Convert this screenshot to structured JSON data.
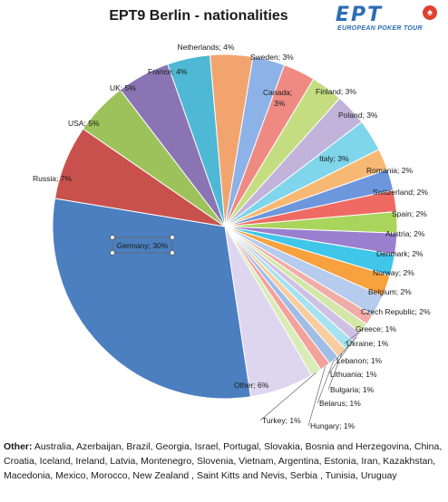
{
  "logo": {
    "brand": "EPT",
    "tagline": "EUROPEAN POKER TOUR",
    "suit": "♠"
  },
  "chart_data": {
    "type": "pie",
    "title": "EPT9 Berlin - nationalities",
    "slices": [
      {
        "label": "Netherlands",
        "value": 4,
        "text": "Netherlands; 4%",
        "color": "#f2a46e"
      },
      {
        "label": "Sweden",
        "value": 3,
        "text": "Sweden; 3%",
        "color": "#8cb2e8"
      },
      {
        "label": "Canada",
        "value": 3,
        "text": "Canada; 3%",
        "color": "#ef8a83"
      },
      {
        "label": "Finland",
        "value": 3,
        "text": "Finland; 3%",
        "color": "#c4dd80"
      },
      {
        "label": "Poland",
        "value": 3,
        "text": "Poland; 3%",
        "color": "#c1b3da"
      },
      {
        "label": "Italy",
        "value": 3,
        "text": "Italy; 3%",
        "color": "#7fd5ea"
      },
      {
        "label": "Romania",
        "value": 2,
        "text": "Romania; 2%",
        "color": "#f7b874"
      },
      {
        "label": "Switzerland",
        "value": 2,
        "text": "Switzerland; 2%",
        "color": "#6d97dc"
      },
      {
        "label": "Spain",
        "value": 2,
        "text": "Spain; 2%",
        "color": "#ef6a63"
      },
      {
        "label": "Austria",
        "value": 2,
        "text": "Austria; 2%",
        "color": "#a9d55c"
      },
      {
        "label": "Denmark",
        "value": 2,
        "text": "Denmark; 2%",
        "color": "#9b7fcf"
      },
      {
        "label": "Norway",
        "value": 2,
        "text": "Norway; 2%",
        "color": "#3fc6e8"
      },
      {
        "label": "Belgium",
        "value": 2,
        "text": "Belgium; 2%",
        "color": "#f7a13f"
      },
      {
        "label": "Czech Republic",
        "value": 2,
        "text": "Czech Republic; 2%",
        "color": "#b6cbed"
      },
      {
        "label": "Greece",
        "value": 1,
        "text": "Greece; 1%",
        "color": "#f2aca8"
      },
      {
        "label": "Ukraine",
        "value": 1,
        "text": "Ukraine; 1%",
        "color": "#d3e7a8"
      },
      {
        "label": "Lebanon",
        "value": 1,
        "text": "Lebanon; 1%",
        "color": "#cfc1e4"
      },
      {
        "label": "Lithuania",
        "value": 1,
        "text": "Lithuania; 1%",
        "color": "#a6e2f0"
      },
      {
        "label": "Bulgaria",
        "value": 1,
        "text": "Bulgaria; 1%",
        "color": "#f8cda0"
      },
      {
        "label": "Belarus",
        "value": 1,
        "text": "Belarus; 1%",
        "color": "#9fbde6"
      },
      {
        "label": "Hungary",
        "value": 1,
        "text": "Hungary; 1%",
        "color": "#f3a19b"
      },
      {
        "label": "Turkey",
        "value": 1,
        "text": "Turkey; 1%",
        "color": "#d9ecb7"
      },
      {
        "label": "Other",
        "value": 6,
        "text": "Other; 6%",
        "color": "#ddd6ee"
      },
      {
        "label": "Germany",
        "value": 30,
        "text": "Germany; 30%",
        "color": "#4b7fbf"
      },
      {
        "label": "Russia",
        "value": 7,
        "text": "Russia; 7%",
        "color": "#c9514d"
      },
      {
        "label": "USA",
        "value": 5,
        "text": "USA; 5%",
        "color": "#9dc25b"
      },
      {
        "label": "UK",
        "value": 5,
        "text": "UK; 5%",
        "color": "#8a74b3"
      },
      {
        "label": "France",
        "value": 4,
        "text": "France; 4%",
        "color": "#4fb8d4"
      }
    ]
  },
  "other_note": {
    "heading": "Other:",
    "text": " Australia, Azerbaijan, Brazil, Georgia, Israel, Portugal, Slovakia, Bosnia and Herzegovina, China, Croatia, Iceland, Ireland, Latvia, Montenegro, Slovenia, Vietnam, Argentina, Estonia, Iran, Kazakhstan, Macedonia, Mexico, Morocco, New Zealand , Saint Kitts and Nevis, Serbia , Tunisia, Uruguay"
  }
}
